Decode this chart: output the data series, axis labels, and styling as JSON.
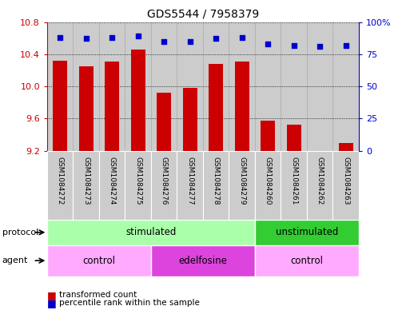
{
  "title": "GDS5544 / 7958379",
  "samples": [
    "GSM1084272",
    "GSM1084273",
    "GSM1084274",
    "GSM1084275",
    "GSM1084276",
    "GSM1084277",
    "GSM1084278",
    "GSM1084279",
    "GSM1084260",
    "GSM1084261",
    "GSM1084262",
    "GSM1084263"
  ],
  "transformed_count": [
    10.32,
    10.25,
    10.31,
    10.46,
    9.92,
    9.98,
    10.28,
    10.31,
    9.57,
    9.52,
    9.2,
    9.3
  ],
  "percentile_rank": [
    88,
    87,
    88,
    89,
    85,
    85,
    87,
    88,
    83,
    82,
    81,
    82
  ],
  "ylim_left": [
    9.2,
    10.8
  ],
  "ylim_right": [
    0,
    100
  ],
  "yticks_left": [
    9.2,
    9.6,
    10.0,
    10.4,
    10.8
  ],
  "yticks_right": [
    0,
    25,
    50,
    75,
    100
  ],
  "bar_color": "#cc0000",
  "scatter_color": "#0000cc",
  "bg_color": "#d3d3d3",
  "protocol_groups": [
    {
      "label": "stimulated",
      "start": 0,
      "end": 7,
      "color": "#aaffaa"
    },
    {
      "label": "unstimulated",
      "start": 8,
      "end": 11,
      "color": "#33cc33"
    }
  ],
  "agent_groups": [
    {
      "label": "control",
      "start": 0,
      "end": 3,
      "color": "#ffaaff"
    },
    {
      "label": "edelfosine",
      "start": 4,
      "end": 7,
      "color": "#dd44dd"
    },
    {
      "label": "control",
      "start": 8,
      "end": 11,
      "color": "#ffaaff"
    }
  ],
  "legend_bar_label": "transformed count",
  "legend_scatter_label": "percentile rank within the sample",
  "protocol_label": "protocol",
  "agent_label": "agent",
  "bar_label_color": "#cc0000",
  "right_axis_color": "#0000cc"
}
